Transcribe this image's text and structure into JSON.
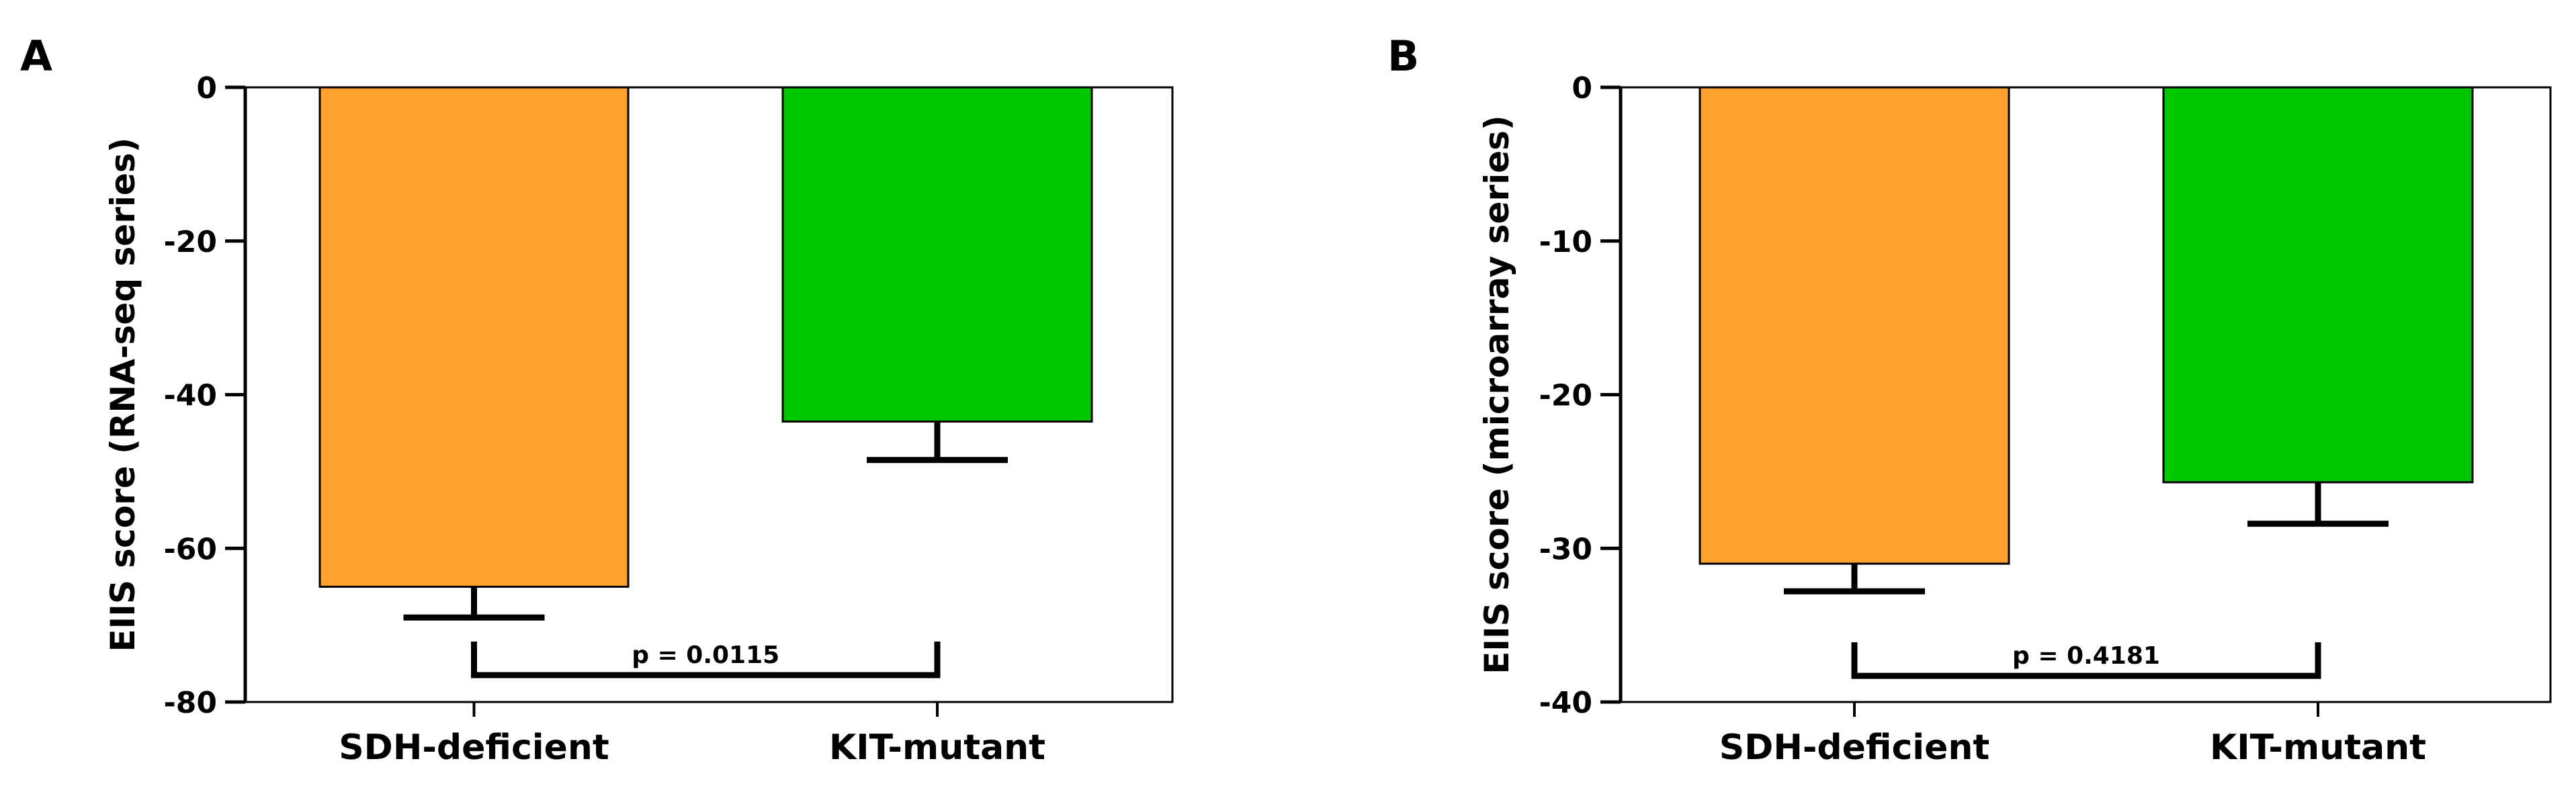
{
  "chart_data": [
    {
      "type": "bar",
      "panel": "A",
      "categories": [
        "SDH-deficient",
        "KIT-mutant"
      ],
      "values": [
        -65,
        -43.5
      ],
      "error_bars": [
        4,
        5
      ],
      "colors": [
        "#ffa22d",
        "#00c800"
      ],
      "ylabel": "EIIS score (RNA-seq series)",
      "ylim": [
        -80,
        0
      ],
      "yticks": [
        0,
        -20,
        -40,
        -60,
        -80
      ],
      "grid": false,
      "annotation": {
        "text": "p = 0.0115",
        "bracket_level": -76.5
      }
    },
    {
      "type": "bar",
      "panel": "B",
      "categories": [
        "SDH-deficient",
        "KIT-mutant"
      ],
      "values": [
        -31,
        -25.7
      ],
      "error_bars": [
        1.8,
        2.7
      ],
      "colors": [
        "#ffa22d",
        "#00c800"
      ],
      "ylabel": "EIIS score (microarray series)",
      "ylim": [
        -40,
        0
      ],
      "yticks": [
        0,
        -10,
        -20,
        -30,
        -40
      ],
      "grid": false,
      "annotation": {
        "text": "p = 0.4181",
        "bracket_level": -38.3
      }
    }
  ]
}
